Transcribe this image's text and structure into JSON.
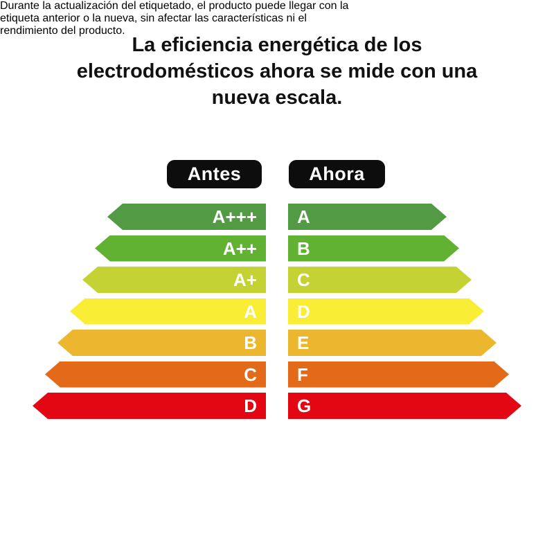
{
  "title": {
    "lines": [
      "La eficiencia energética de los",
      "electrodomésticos ahora se mide con una",
      "nueva escala."
    ]
  },
  "legend": {
    "before_label": "Antes",
    "after_label": "Ahora",
    "badge_color": "#0d0d0d"
  },
  "scale": {
    "rows": [
      {
        "before": "A+++",
        "after": "A",
        "color": "#529a44"
      },
      {
        "before": "A++",
        "after": "B",
        "color": "#61b233"
      },
      {
        "before": "A+",
        "after": "C",
        "color": "#c4d333"
      },
      {
        "before": "A",
        "after": "D",
        "color": "#f9ee35"
      },
      {
        "before": "B",
        "after": "E",
        "color": "#ecb72e"
      },
      {
        "before": "C",
        "after": "F",
        "color": "#e26a19"
      },
      {
        "before": "D",
        "after": "G",
        "color": "#e30613"
      }
    ]
  },
  "footer": {
    "lines": [
      "Durante la actualización del etiquetado, el producto puede llegar con la",
      "etiqueta anterior o la nueva, sin afectar las características ni el",
      "rendimiento del producto."
    ]
  }
}
